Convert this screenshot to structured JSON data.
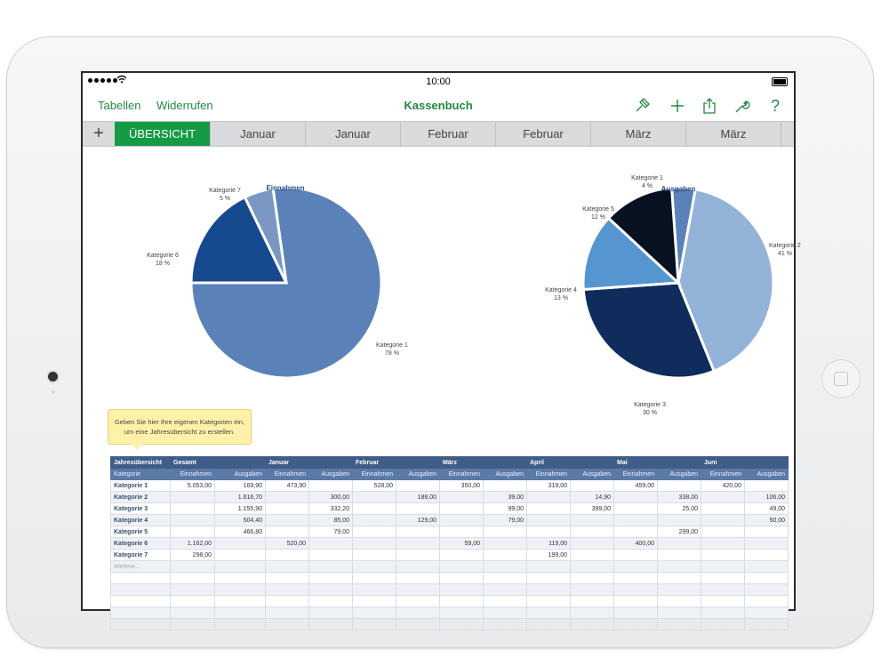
{
  "status": {
    "time": "10:00"
  },
  "toolbar": {
    "tables_label": "Tabellen",
    "undo_label": "Widerrufen",
    "title": "Kassenbuch"
  },
  "tabs": [
    {
      "label": "ÜBERSICHT",
      "active": true
    },
    {
      "label": "Januar",
      "active": false
    },
    {
      "label": "Januar",
      "active": false
    },
    {
      "label": "Februar",
      "active": false
    },
    {
      "label": "Februar",
      "active": false
    },
    {
      "label": "März",
      "active": false
    },
    {
      "label": "März",
      "active": false
    }
  ],
  "chart_data": [
    {
      "type": "pie",
      "title": "Einnahmen",
      "colors": [
        "#5a82b8",
        "#17498f",
        "#7a97c2"
      ],
      "slices": [
        {
          "label": "Kategorie 1",
          "percent_label": "78 %",
          "value": 78
        },
        {
          "label": "Kategorie 6",
          "percent_label": "18 %",
          "value": 18
        },
        {
          "label": "Kategorie 7",
          "percent_label": "5 %",
          "value": 5
        }
      ]
    },
    {
      "type": "pie",
      "title": "Ausgaben",
      "colors": [
        "#5a82b8",
        "#93b3d9",
        "#0f2c5d",
        "#5596d1",
        "#07111f"
      ],
      "slices": [
        {
          "label": "Kategorie 1",
          "percent_label": "4 %",
          "value": 4
        },
        {
          "label": "Kategorie 2",
          "percent_label": "41 %",
          "value": 41
        },
        {
          "label": "Kategorie 3",
          "percent_label": "30 %",
          "value": 30
        },
        {
          "label": "Kategorie 4",
          "percent_label": "13 %",
          "value": 13
        },
        {
          "label": "Kategorie 5",
          "percent_label": "12 %",
          "value": 12
        }
      ]
    }
  ],
  "tooltip": {
    "line1": "Geben Sie hier Ihre eigenen Kategorien ein,",
    "line2": "um eine Jahresübersicht zu erstellen."
  },
  "table": {
    "header1": [
      "Jahresübersicht",
      "Gesamt",
      "",
      "Januar",
      "",
      "Februar",
      "",
      "März",
      "",
      "April",
      "",
      "Mai",
      "",
      "Juni",
      ""
    ],
    "header2": [
      "Kategorie",
      "Einnahmen",
      "Ausgaben",
      "Einnahmen",
      "Ausgaben",
      "Einnahmen",
      "Ausgaben",
      "Einnahmen",
      "Ausgaben",
      "Einnahmen",
      "Ausgaben",
      "Einnahmen",
      "Ausgaben",
      "Einnahmen",
      "Ausgaben"
    ],
    "rows": [
      [
        "Kategorie 1",
        "5.053,00",
        "169,90",
        "473,90",
        "",
        "528,00",
        "",
        "350,00",
        "",
        "319,00",
        "",
        "459,00",
        "",
        "420,00",
        ""
      ],
      [
        "Kategorie 2",
        "",
        "1.616,70",
        "",
        "300,00",
        "",
        "188,00",
        "",
        "39,00",
        "",
        "14,90",
        "",
        "338,00",
        "",
        "106,00"
      ],
      [
        "Kategorie 3",
        "",
        "1.155,90",
        "",
        "332,20",
        "",
        "",
        "",
        "99,00",
        "",
        "399,00",
        "",
        "25,00",
        "",
        "49,00"
      ],
      [
        "Kategorie 4",
        "",
        "504,40",
        "",
        "85,00",
        "",
        "129,00",
        "",
        "79,00",
        "",
        "",
        "",
        "",
        "",
        "50,00"
      ],
      [
        "Kategorie 5",
        "",
        "466,80",
        "",
        "79,00",
        "",
        "",
        "",
        "",
        "",
        "",
        "",
        "299,00",
        "",
        ""
      ],
      [
        "Kategorie 6",
        "1.162,00",
        "",
        "520,00",
        "",
        "",
        "",
        "59,00",
        "",
        "119,00",
        "",
        "400,00",
        "",
        "",
        ""
      ],
      [
        "Kategorie 7",
        "298,00",
        "",
        "",
        "",
        "",
        "",
        "",
        "",
        "199,00",
        "",
        "",
        "",
        "",
        ""
      ],
      [
        "Weitere…",
        "",
        "",
        "",
        "",
        "",
        "",
        "",
        "",
        "",
        "",
        "",
        "",
        "",
        ""
      ]
    ]
  }
}
